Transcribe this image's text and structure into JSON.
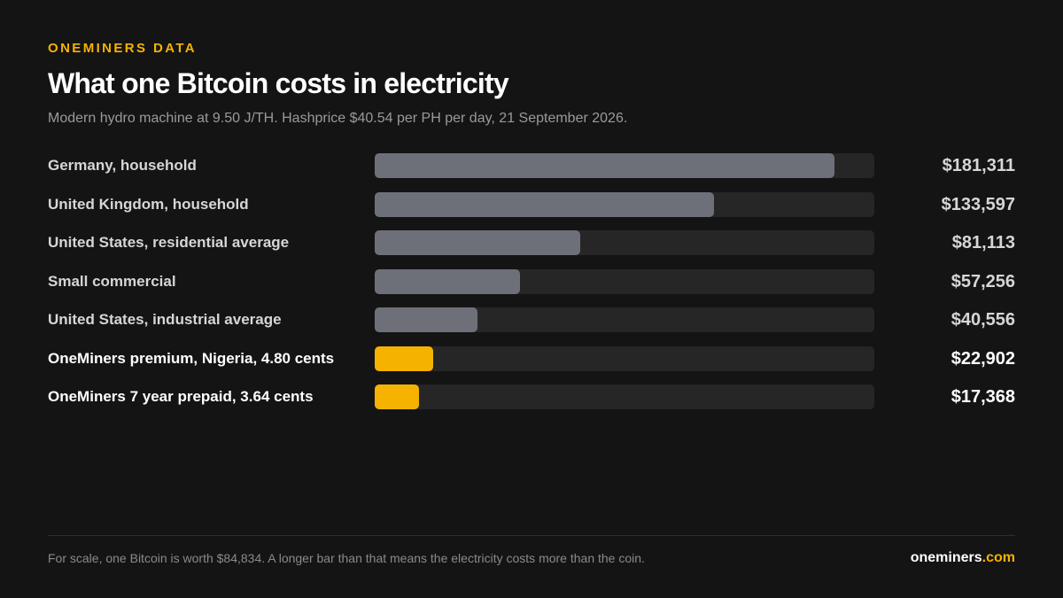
{
  "header": {
    "eyebrow": "ONEMINERS DATA",
    "title": "What one Bitcoin costs in electricity",
    "subtitle": "Modern hydro machine at 9.50 J/TH. Hashprice $40.54 per PH per day, 21 September 2026."
  },
  "chart_data": {
    "type": "bar",
    "orientation": "horizontal",
    "title": "What one Bitcoin costs in electricity",
    "subtitle": "Modern hydro machine at 9.50 J/TH. Hashprice $40.54 per PH per day, 21 September 2026.",
    "categories": [
      "Germany, household",
      "United Kingdom, household",
      "United States, residential average",
      "Small commercial",
      "United States, industrial average",
      "OneMiners premium, Nigeria, 4.80 cents",
      "OneMiners 7 year prepaid, 3.64 cents"
    ],
    "values": [
      181311,
      133597,
      81113,
      57256,
      40556,
      22902,
      17368
    ],
    "value_labels": [
      "$181,311",
      "$133,597",
      "$81,113",
      "$57,256",
      "$40,556",
      "$22,902",
      "$17,368"
    ],
    "highlighted": [
      false,
      false,
      false,
      false,
      false,
      true,
      true
    ],
    "xlim": [
      0,
      197000
    ],
    "grid": false,
    "legend": "none"
  },
  "colors": {
    "accent": "#f5b300",
    "bar_default": "#6e7079",
    "track": "#262626",
    "background": "#141414"
  },
  "footer": {
    "note": "For scale, one Bitcoin is worth $84,834. A longer bar than that means the electricity costs more than the coin.",
    "brand_name": "oneminers",
    "brand_tld": ".com"
  }
}
